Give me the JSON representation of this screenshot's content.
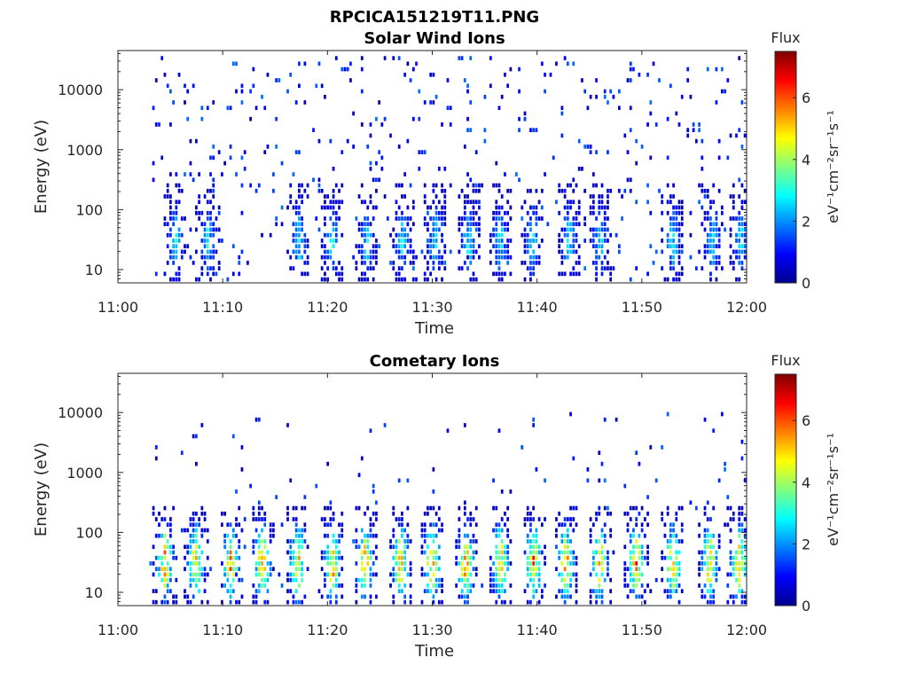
{
  "figure_title": "RPCICA151219T11.PNG",
  "chart_data": [
    {
      "type": "heatmap",
      "title": "Solar Wind Ions",
      "xlabel": "Time",
      "ylabel": "Energy (eV)",
      "x_tick_labels": [
        "11:00",
        "11:10",
        "11:20",
        "11:30",
        "11:40",
        "11:50",
        "12:00"
      ],
      "x_range_minutes": [
        0,
        60
      ],
      "y_scale": "log",
      "y_range": [
        6,
        45000
      ],
      "y_tick_values": [
        10,
        100,
        1000,
        10000
      ],
      "y_tick_labels": [
        "10",
        "100",
        "1000",
        "10000"
      ],
      "colorbar": {
        "title": "Flux",
        "label": "eV⁻¹cm⁻²sr⁻¹s⁻¹",
        "range": [
          0,
          7.5
        ],
        "tick_labels": [
          "0",
          "2",
          "4",
          "6"
        ],
        "colormap": "jet"
      },
      "dense_band_times": [
        5.5,
        8.6,
        17.3,
        20.4,
        23.8,
        27.2,
        30.3,
        33.5,
        36.5,
        39.6,
        43.1,
        46.0,
        53.0,
        56.8,
        59.5
      ],
      "band_peak_energy_eV": 30,
      "scatter_energy_range_eV": [
        6,
        40000
      ],
      "max_intensity_value": 3.5,
      "scatter_density": 0.05
    },
    {
      "type": "heatmap",
      "title": "Cometary Ions",
      "xlabel": "Time",
      "ylabel": "Energy (eV)",
      "x_tick_labels": [
        "11:00",
        "11:10",
        "11:20",
        "11:30",
        "11:40",
        "11:50",
        "12:00"
      ],
      "x_range_minutes": [
        0,
        60
      ],
      "y_scale": "log",
      "y_range": [
        6,
        45000
      ],
      "y_tick_values": [
        10,
        100,
        1000,
        10000
      ],
      "y_tick_labels": [
        "10",
        "100",
        "1000",
        "10000"
      ],
      "colorbar": {
        "title": "Flux",
        "label": "eV⁻¹cm⁻²sr⁻¹s⁻¹",
        "range": [
          0,
          7.5
        ],
        "tick_labels": [
          "0",
          "2",
          "4",
          "6"
        ],
        "colormap": "jet"
      },
      "dense_band_times": [
        4.5,
        7.5,
        10.8,
        13.8,
        17.2,
        20.5,
        23.6,
        27.0,
        30.0,
        33.2,
        36.5,
        39.7,
        42.8,
        46.0,
        49.5,
        53.0,
        56.5,
        59.3
      ],
      "band_peak_energy_eV": 30,
      "scatter_energy_range_eV": [
        10,
        10000
      ],
      "max_intensity_value": 7.0,
      "scatter_density": 0.018
    }
  ]
}
